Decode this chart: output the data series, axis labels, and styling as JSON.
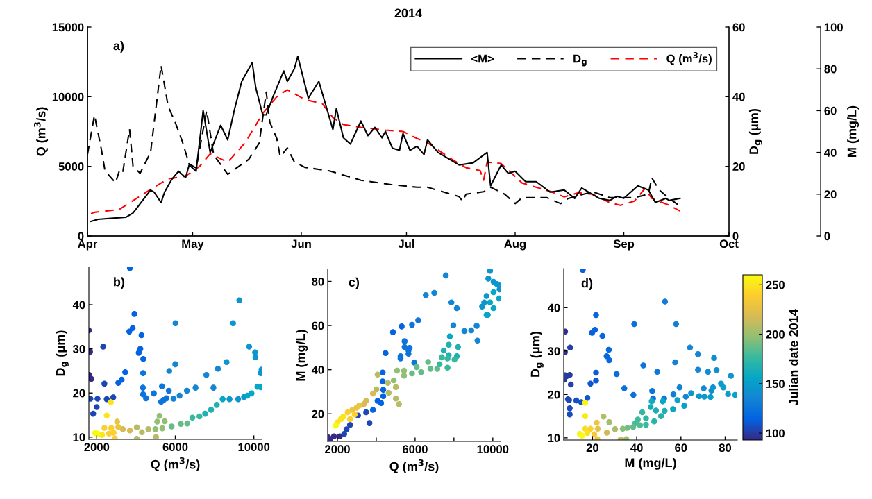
{
  "chart_data": [
    {
      "type": "line",
      "title": "2014",
      "xlim": [
        "2014-04-01",
        "2014-10-01"
      ],
      "xticks": [
        {
          "value": "2014-04-01",
          "label": "Apr"
        },
        {
          "value": "2014-05-01",
          "label": "May"
        },
        {
          "value": "2014-06-01",
          "label": "Jun"
        },
        {
          "value": "2014-07-01",
          "label": "Jul"
        },
        {
          "value": "2014-08-01",
          "label": "Aug"
        },
        {
          "value": "2014-09-01",
          "label": "Sep"
        },
        {
          "value": "2014-10-01",
          "label": "Oct"
        }
      ],
      "ylim": [
        0,
        15000
      ],
      "yticks": [
        0,
        5000,
        10000,
        15000
      ],
      "ylabel": "Q (m$^{3}$/s)",
      "y2lim": [
        0,
        60
      ],
      "y2ticks": [
        0,
        20,
        40,
        60
      ],
      "y2label": "D$_{g}$ (μm)",
      "y3lim": [
        0,
        100
      ],
      "y3ticks": [
        0,
        20,
        40,
        60,
        80,
        100
      ],
      "y3label": "M (mg/L)",
      "legend": "top right",
      "annotations": [
        "a)"
      ],
      "series": [
        {
          "name": "<M>",
          "color": "#000000",
          "axis": "y3",
          "line_style": "solid",
          "x": [
            "2014-04-02",
            "2014-04-04",
            "2014-04-12",
            "2014-04-14",
            "2014-04-19",
            "2014-04-20",
            "2014-04-22",
            "2014-04-23",
            "2014-04-25",
            "2014-04-27",
            "2014-04-29",
            "2014-04-30",
            "2014-05-02",
            "2014-05-04",
            "2014-05-06",
            "2014-05-09",
            "2014-05-11",
            "2014-05-13",
            "2014-05-15",
            "2014-05-18",
            "2014-05-19",
            "2014-05-21",
            "2014-05-22",
            "2014-05-24",
            "2014-05-27",
            "2014-05-28",
            "2014-05-30",
            "2014-05-31",
            "2014-06-03",
            "2014-06-06",
            "2014-06-10",
            "2014-06-11",
            "2014-06-13",
            "2014-06-15",
            "2014-06-18",
            "2014-06-20",
            "2014-06-22",
            "2014-06-24",
            "2014-06-25",
            "2014-06-27",
            "2014-06-29",
            "2014-06-30",
            "2014-07-02",
            "2014-07-04",
            "2014-07-06",
            "2014-07-07",
            "2014-07-10",
            "2014-07-16",
            "2014-07-20",
            "2014-07-24",
            "2014-07-25",
            "2014-07-28",
            "2014-07-30",
            "2014-08-01",
            "2014-08-04",
            "2014-08-07",
            "2014-08-11",
            "2014-08-15",
            "2014-08-18",
            "2014-08-20",
            "2014-08-25",
            "2014-08-28",
            "2014-08-30",
            "2014-09-01",
            "2014-09-05",
            "2014-09-08",
            "2014-09-10",
            "2014-09-13",
            "2014-09-14",
            "2014-09-17"
          ],
          "values": [
            7,
            8,
            9,
            11,
            22,
            21,
            16,
            21,
            27,
            31,
            28,
            34,
            31,
            60,
            40,
            53,
            46,
            61,
            74,
            83,
            71,
            58,
            58,
            67,
            79,
            74,
            80,
            86,
            66,
            74,
            51,
            61,
            47,
            44,
            55,
            48,
            52,
            47,
            50,
            42,
            41,
            49,
            41,
            43,
            39,
            46,
            40,
            34,
            35,
            40,
            24,
            34,
            30,
            31,
            26,
            26,
            21,
            22,
            18,
            23,
            18,
            17,
            19,
            18,
            24,
            22,
            16,
            18,
            17,
            18
          ]
        },
        {
          "name": "D$_{g}$",
          "color": "#000000",
          "axis": "y2",
          "line_style": "dashed",
          "x": [
            "2014-04-01",
            "2014-04-03",
            "2014-04-05",
            "2014-04-06",
            "2014-04-09",
            "2014-04-10",
            "2014-04-11",
            "2014-04-13",
            "2014-04-14",
            "2014-04-16",
            "2014-04-19",
            "2014-04-22",
            "2014-04-24",
            "2014-04-26",
            "2014-04-28",
            "2014-04-30",
            "2014-05-02",
            "2014-05-05",
            "2014-05-07",
            "2014-05-11",
            "2014-05-17",
            "2014-05-20",
            "2014-05-22",
            "2014-05-23",
            "2014-05-25",
            "2014-05-26",
            "2014-05-28",
            "2014-05-30",
            "2014-06-02",
            "2014-06-09",
            "2014-06-18",
            "2014-06-27",
            "2014-07-04",
            "2014-07-07",
            "2014-07-16",
            "2014-07-17",
            "2014-07-18",
            "2014-07-23",
            "2014-07-25",
            "2014-07-29",
            "2014-08-01",
            "2014-08-03",
            "2014-08-10",
            "2014-08-14",
            "2014-08-16",
            "2014-08-23",
            "2014-08-28",
            "2014-09-04",
            "2014-09-08",
            "2014-09-09",
            "2014-09-11",
            "2014-09-14",
            "2014-09-17"
          ],
          "values": [
            23.4,
            34.7,
            24.7,
            18.7,
            15.3,
            18.4,
            17.8,
            30.7,
            20.0,
            18.0,
            24.0,
            49.0,
            37.3,
            32.7,
            27.3,
            20.7,
            19.5,
            36.0,
            23.3,
            17.7,
            22.0,
            26.7,
            41.3,
            32.7,
            28.0,
            22.7,
            25.3,
            21.3,
            19.7,
            18.7,
            16.0,
            14.7,
            14.0,
            14.0,
            11.3,
            10.0,
            12.0,
            12.7,
            14.0,
            12.0,
            9.3,
            11.0,
            11.0,
            9.3,
            10.7,
            12.7,
            11.0,
            11.0,
            12.0,
            16.7,
            13.3,
            10.7,
            8.6
          ]
        },
        {
          "name": "Q (m$^{3}$/s)",
          "color": "#ff0000",
          "axis": "y",
          "line_style": "dashed",
          "x": [
            "2014-04-02",
            "2014-04-03",
            "2014-04-10",
            "2014-04-15",
            "2014-04-20",
            "2014-04-24",
            "2014-04-29",
            "2014-05-03",
            "2014-05-06",
            "2014-05-11",
            "2014-05-16",
            "2014-05-21",
            "2014-05-25",
            "2014-05-28",
            "2014-06-02",
            "2014-06-07",
            "2014-06-10",
            "2014-06-13",
            "2014-06-18",
            "2014-06-25",
            "2014-06-30",
            "2014-07-04",
            "2014-07-07",
            "2014-07-14",
            "2014-07-18",
            "2014-07-22",
            "2014-07-23",
            "2014-07-24",
            "2014-07-28",
            "2014-08-03",
            "2014-08-11",
            "2014-08-15",
            "2014-08-19",
            "2014-08-23",
            "2014-08-28",
            "2014-08-31",
            "2014-09-04",
            "2014-09-07",
            "2014-09-09",
            "2014-09-14",
            "2014-09-17"
          ],
          "values": [
            1600,
            1700,
            1900,
            2700,
            3500,
            4100,
            4300,
            5000,
            5900,
            5300,
            6700,
            8800,
            10000,
            10500,
            9800,
            9500,
            8500,
            8000,
            7800,
            7600,
            7500,
            7000,
            6700,
            5500,
            4900,
            4700,
            4000,
            5300,
            5200,
            3800,
            3200,
            2800,
            3100,
            3000,
            2400,
            2200,
            2500,
            3400,
            2700,
            2200,
            1800
          ]
        }
      ]
    },
    {
      "type": "scatter",
      "xlabel": "Q (m$^{3}$/s)",
      "ylabel": "D$_{g}$ (μm)",
      "xlim": [
        1600,
        10400
      ],
      "xticks": [
        2000,
        6000,
        10000
      ],
      "ylim": [
        9.5,
        48.5
      ],
      "yticks": [
        10,
        20,
        30,
        40
      ],
      "marker": "circle",
      "annotations": [
        "b)"
      ],
      "x": [
        1600,
        1660,
        1620,
        1720,
        1680,
        2040,
        1820,
        2000,
        2330,
        2390,
        2510,
        2840,
        3100,
        3270,
        3450,
        3660,
        3830,
        3690,
        3920,
        4140,
        4220,
        4280,
        4370,
        4360,
        4350,
        4360,
        4510,
        4910,
        5320,
        5280,
        5400,
        5550,
        5670,
        5690,
        6000,
        6010,
        5910,
        6220,
        6590,
        7030,
        7580,
        7940,
        8170,
        8610,
        8940,
        9260,
        8760,
        9200,
        9500,
        9760,
        10060,
        10080,
        10390,
        10350,
        10180,
        10350,
        9880,
        9670,
        8410,
        8110,
        7820,
        7520,
        7230,
        6870,
        6610,
        6280,
        5810,
        5340,
        5200,
        5080,
        5460,
        4990,
        5020,
        4630,
        4300,
        4040,
        4040,
        3690,
        3330,
        3100,
        3040,
        2860,
        2740,
        2920,
        2630,
        2390,
        2510,
        2720,
        2270,
        2040,
        1920
      ],
      "values": [
        34.2,
        29.3,
        24.1,
        23.2,
        18.7,
        18.7,
        15.3,
        16.8,
        30.5,
        22.1,
        18.6,
        19.0,
        22.3,
        23.0,
        24.7,
        33.9,
        34.7,
        48.3,
        37.9,
        29.1,
        30.0,
        33.1,
        27.7,
        24.5,
        21.2,
        19.7,
        18.8,
        19.9,
        21.5,
        18.0,
        18.4,
        18.8,
        20.5,
        25.0,
        26.5,
        35.8,
        18.7,
        19.4,
        20.5,
        21.2,
        24.1,
        21.2,
        25.5,
        27.0,
        35.8,
        41.0,
        18.6,
        18.6,
        19.1,
        30.5,
        29.2,
        28.1,
        25.3,
        24.5,
        21.4,
        21.3,
        19.9,
        19.4,
        18.6,
        17.3,
        16.2,
        15.3,
        14.7,
        14.4,
        13.1,
        13.0,
        12.4,
        12.0,
        14.8,
        13.5,
        13.6,
        11.8,
        10.0,
        11.8,
        11.1,
        12.2,
        9.6,
        11.5,
        11.8,
        12.3,
        13.5,
        11.0,
        12.1,
        9.7,
        10.8,
        12.1,
        14.9,
        17.9,
        10.5,
        10.8,
        10.9
      ],
      "colors": [
        "#352a87",
        "#352a87",
        "#352a87",
        "#352a87",
        "#1c46b4",
        "#1c46b4",
        "#1c46b4",
        "#1c46b4",
        "#1c46b4",
        "#1c46b4",
        "#1c46b4",
        "#1c46b4",
        "#0363e1",
        "#0363e1",
        "#0363e1",
        "#0363e1",
        "#0363e1",
        "#0363e1",
        "#0363e1",
        "#0363e1",
        "#0363e1",
        "#0363e1",
        "#0363e1",
        "#0c74da",
        "#0c74da",
        "#0c74da",
        "#0c74da",
        "#0c74da",
        "#0c74da",
        "#0c74da",
        "#0c74da",
        "#0c74da",
        "#0c74da",
        "#1485d4",
        "#1485d4",
        "#1485d4",
        "#1485d4",
        "#1485d4",
        "#1485d4",
        "#1485d4",
        "#1485d4",
        "#1485d4",
        "#1485d4",
        "#0d96cd",
        "#0d96cd",
        "#0d96cd",
        "#0d96cd",
        "#0d96cd",
        "#0d96cd",
        "#0d96cd",
        "#0d96cd",
        "#0d96cd",
        "#0d96cd",
        "#0d96cd",
        "#06a7c6",
        "#06a7c6",
        "#06a7c6",
        "#06a7c6",
        "#06a7c6",
        "#1fb0b2",
        "#1fb0b2",
        "#1fb0b2",
        "#38b99e",
        "#38b99e",
        "#65bc88",
        "#65bc88",
        "#65bc88",
        "#92bf73",
        "#92bf73",
        "#92bf73",
        "#92bf73",
        "#92bf73",
        "#b6bc64",
        "#b6bc64",
        "#b6bc64",
        "#b6bc64",
        "#b6bc64",
        "#d9ba56",
        "#d9ba56",
        "#eac442",
        "#eac442",
        "#fcce2e",
        "#fcce2e",
        "#fcce2e",
        "#fcce2e",
        "#fcce2e",
        "#fae41e",
        "#fae41e",
        "#fae41e",
        "#f9fb0e",
        "#f9fb0e"
      ]
    },
    {
      "type": "scatter",
      "xlabel": "Q (m$^{3}$/s)",
      "ylabel": "M (mg/L)",
      "xlim": [
        1500,
        10400
      ],
      "xticks": [
        2000,
        {
          "value": 4000,
          "label": null
        },
        6000,
        {
          "value": 8000,
          "label": null
        },
        10000
      ],
      "ylim": [
        7.5,
        85.5
      ],
      "yticks": [
        20,
        40,
        60,
        80
      ],
      "marker": "circle",
      "annotations": [
        "c)"
      ],
      "x": [
        1610,
        1530,
        1820,
        2120,
        2350,
        2470,
        2650,
        3060,
        3480,
        3650,
        3830,
        4070,
        4250,
        4360,
        4360,
        4330,
        4330,
        4480,
        4860,
        5310,
        5250,
        5250,
        5460,
        5460,
        5660,
        5660,
        5720,
        5840,
        5960,
        6160,
        6550,
        6990,
        7580,
        7870,
        8150,
        7970,
        8540,
        8890,
        9170,
        9210,
        9450,
        9560,
        9680,
        9740,
        9860,
        9770,
        10040,
        10210,
        10330,
        10350,
        10040,
        10040,
        10330,
        9680,
        9860,
        7790,
        8210,
        7730,
        7470,
        7730,
        8150,
        8030,
        7670,
        7380,
        7260,
        7670,
        7140,
        6790,
        6670,
        6310,
        6080,
        5840,
        5430,
        5430,
        5070,
        4900,
        5010,
        5170,
        5010,
        4640,
        4600,
        4070,
        4010,
        3830,
        3480,
        3360,
        2990,
        2770,
        2530,
        2890,
        2300,
        2180,
        2000,
        1920,
        2650,
        3120
      ],
      "values": [
        8.0,
        9.3,
        9.8,
        9.8,
        10.9,
        13.0,
        15.0,
        19.2,
        20.7,
        15.8,
        21.8,
        25.9,
        24.9,
        28.0,
        30.9,
        34.7,
        38.7,
        47.5,
        57.0,
        59.6,
        46.1,
        45.1,
        50.3,
        52.9,
        48.7,
        47.2,
        49.9,
        60.3,
        43.2,
        62.4,
        73.8,
        74.8,
        82.7,
        70.5,
        67.9,
        60.1,
        57.5,
        57.8,
        59.9,
        53.2,
        68.6,
        70.5,
        73.4,
        64.8,
        84.8,
        81.3,
        79.8,
        78.8,
        78.2,
        76.4,
        75.1,
        67.9,
        72.3,
        64.8,
        70.5,
        55.1,
        50.3,
        51.3,
        48.7,
        46.6,
        46.1,
        44.6,
        45.1,
        45.6,
        42.5,
        40.9,
        40.4,
        40.4,
        43.5,
        38.9,
        41.2,
        38.3,
        37.3,
        39.6,
        39.6,
        35.2,
        32.1,
        24.4,
        26.9,
        29.5,
        34.0,
        37.8,
        31.1,
        29.2,
        25.9,
        24.4,
        22.8,
        21.8,
        20.7,
        19.7,
        18.7,
        17.6,
        16.1,
        14.7,
        17.6,
        23.8
      ],
      "colors": [
        "#352a87",
        "#352a87",
        "#352a87",
        "#352a87",
        "#1c46b4",
        "#1c46b4",
        "#1c46b4",
        "#1c46b4",
        "#1c46b4",
        "#1c46b4",
        "#0363e1",
        "#0363e1",
        "#0363e1",
        "#0363e1",
        "#0363e1",
        "#0363e1",
        "#0363e1",
        "#0363e1",
        "#0363e1",
        "#0363e1",
        "#0c74da",
        "#0c74da",
        "#0c74da",
        "#0c74da",
        "#0c74da",
        "#0c74da",
        "#0c74da",
        "#0c74da",
        "#0c74da",
        "#0c74da",
        "#1485d4",
        "#1485d4",
        "#1485d4",
        "#1485d4",
        "#1485d4",
        "#1485d4",
        "#1485d4",
        "#1485d4",
        "#1485d4",
        "#1485d4",
        "#0d96cd",
        "#0d96cd",
        "#0d96cd",
        "#0d96cd",
        "#0d96cd",
        "#0d96cd",
        "#0d96cd",
        "#0d96cd",
        "#0d96cd",
        "#0d96cd",
        "#06a7c6",
        "#06a7c6",
        "#06a7c6",
        "#06a7c6",
        "#06a7c6",
        "#06a7c6",
        "#1fb0b2",
        "#1fb0b2",
        "#1fb0b2",
        "#1fb0b2",
        "#1fb0b2",
        "#38b99e",
        "#38b99e",
        "#38b99e",
        "#38b99e",
        "#38b99e",
        "#65bc88",
        "#65bc88",
        "#65bc88",
        "#65bc88",
        "#65bc88",
        "#65bc88",
        "#92bf73",
        "#92bf73",
        "#92bf73",
        "#92bf73",
        "#b6bc64",
        "#b6bc64",
        "#b6bc64",
        "#b6bc64",
        "#b6bc64",
        "#b6bc64",
        "#b6bc64",
        "#d9ba56",
        "#d9ba56",
        "#d9ba56",
        "#eac442",
        "#eac442",
        "#fcce2e",
        "#fcce2e",
        "#fae41e",
        "#fae41e",
        "#fae41e",
        "#f9fb0e",
        "#fcce2e",
        "#eac442"
      ]
    },
    {
      "type": "scatter",
      "xlabel": "M (mg/L)",
      "ylabel": "D$_{g}$ (μm)",
      "xlim": [
        7,
        85.5
      ],
      "xticks": [
        20,
        40,
        60,
        80
      ],
      "ylim": [
        9.5,
        49
      ],
      "yticks": [
        10,
        20,
        30,
        40
      ],
      "clim": [
        93,
        260
      ],
      "cticks": [
        100,
        150,
        200,
        250
      ],
      "clabel": "Julian date 2014",
      "marker": "circle",
      "annotations": [
        "d)"
      ],
      "x": [
        7.6,
        7.5,
        7.2,
        8.3,
        9.7,
        7.6,
        9.9,
        10.2,
        8.9,
        9.4,
        9.7,
        9.7,
        12.7,
        14.9,
        17.7,
        15.6,
        19.1,
        21.6,
        21.6,
        19.8,
        21.1,
        21.6,
        24.5,
        26.4,
        27.6,
        27.4,
        30.9,
        34.4,
        38.5,
        38.9,
        43.0,
        47.0,
        47.4,
        49.3,
        52.4,
        52.8,
        56.6,
        57.8,
        57.4,
        59.4,
        62.2,
        64.1,
        67.7,
        67.7,
        70.3,
        72.2,
        73.8,
        75.0,
        76.1,
        74.5,
        82.6,
        64.6,
        68.2,
        70.6,
        73.4,
        78.1,
        79.2,
        81.3,
        84.5,
        61.5,
        58.4,
        56.4,
        51.8,
        46.8,
        46.3,
        48.7,
        52.6,
        51.0,
        47.9,
        44.2,
        42.5,
        44.2,
        40.5,
        39.4,
        41.5,
        38.4,
        35.8,
        35.3,
        33.7,
        32.7,
        30.2,
        27.6,
        25.0,
        26.5,
        22.4,
        21.9,
        19.1,
        20.8,
        22.2,
        16.7,
        17.7,
        14.3,
        16.7,
        16.7,
        15.3
      ],
      "values": [
        34.5,
        29.7,
        23.4,
        24.2,
        24.5,
        24.4,
        30.8,
        22.3,
        18.9,
        18.7,
        16.8,
        15.4,
        18.6,
        18.2,
        19.2,
        48.7,
        22.5,
        23.2,
        25.0,
        34.2,
        34.9,
        38.3,
        33.5,
        28.8,
        27.9,
        30.3,
        24.7,
        21.4,
        19.9,
        36.2,
        26.7,
        20.8,
        19.1,
        25.2,
        19.1,
        41.4,
        20.0,
        36.2,
        27.4,
        21.6,
        19.5,
        30.8,
        29.3,
        25.7,
        21.4,
        25.2,
        20.9,
        28.4,
        25.6,
        21.6,
        24.3,
        20.3,
        19.6,
        19.5,
        19.4,
        22.5,
        21.6,
        20.1,
        19.9,
        17.4,
        18.7,
        16.6,
        18.4,
        18.4,
        17.1,
        16.3,
        16.2,
        15.0,
        13.8,
        14.5,
        15.9,
        13.0,
        14.2,
        13.4,
        12.9,
        12.5,
        12.3,
        9.7,
        12.1,
        9.6,
        12.0,
        13.6,
        14.9,
        11.2,
        12.1,
        13.5,
        12.1,
        10.8,
        9.7,
        12.1,
        11.1,
        10.9,
        15.0,
        18.1,
        10.5
      ],
      "cvalues": [
        95,
        96,
        97,
        98,
        99,
        100,
        101,
        102,
        103,
        104,
        105,
        106,
        107,
        108,
        109,
        114,
        110,
        111,
        112,
        113,
        114,
        115,
        116,
        117,
        118,
        119,
        120,
        121,
        122,
        123,
        124,
        125,
        126,
        127,
        128,
        129,
        130,
        131,
        132,
        133,
        134,
        135,
        136,
        137,
        138,
        139,
        140,
        141,
        142,
        143,
        144,
        145,
        146,
        147,
        148,
        149,
        150,
        151,
        152,
        153,
        154,
        155,
        156,
        160,
        162,
        164,
        166,
        168,
        170,
        172,
        174,
        176,
        178,
        180,
        182,
        186,
        190,
        200,
        195,
        210,
        205,
        203,
        207,
        215,
        225,
        230,
        240,
        235,
        232,
        245,
        248,
        255,
        252,
        257,
        259
      ]
    }
  ]
}
